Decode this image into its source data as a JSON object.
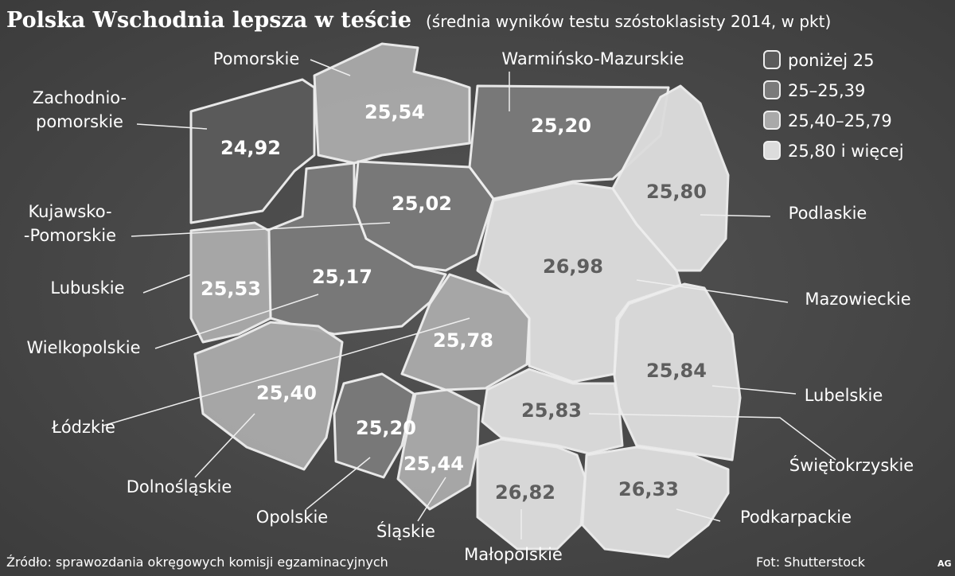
{
  "header": {
    "title": "Polska Wschodnia lepsza w teście",
    "subtitle": "(średnia wyników testu szóstoklasisty 2014, w pkt)"
  },
  "legend": [
    {
      "label": "poniżej 25",
      "color": "#5b5b5b",
      "text_color": "#ffffff"
    },
    {
      "label": "25–25,39",
      "min": 25,
      "color": "#7a7a7a",
      "text_color": "#ffffff"
    },
    {
      "label": "25,40–25,79",
      "min": 25.4,
      "color": "#a9a9a9",
      "text_color": "#ffffff"
    },
    {
      "label": "25,80 i więcej",
      "min": 25.8,
      "color": "#dcdcdc",
      "text_color": "#5e5e5e"
    }
  ],
  "regions": [
    {
      "name_lines": [
        "Pomorskie"
      ],
      "value": 25.54,
      "value_label": "25,54"
    },
    {
      "name_lines": [
        "Zachodnio-",
        "pomorskie"
      ],
      "value": 24.92,
      "value_label": "24,92"
    },
    {
      "name_lines": [
        "Warmińsko-Mazurskie"
      ],
      "value": 25.2,
      "value_label": "25,20"
    },
    {
      "name_lines": [
        "Kujawsko-",
        "-Pomorskie"
      ],
      "value": 25.02,
      "value_label": "25,02"
    },
    {
      "name_lines": [
        "Wielkopolskie"
      ],
      "value": 25.17,
      "value_label": "25,17"
    },
    {
      "name_lines": [
        "Lubuskie"
      ],
      "value": 25.53,
      "value_label": "25,53"
    },
    {
      "name_lines": [
        "Łódzkie"
      ],
      "value": 25.78,
      "value_label": "25,78"
    },
    {
      "name_lines": [
        "Mazowieckie"
      ],
      "value": 26.98,
      "value_label": "26,98"
    },
    {
      "name_lines": [
        "Podlaskie"
      ],
      "value": 25.8,
      "value_label": "25,80"
    },
    {
      "name_lines": [
        "Lubelskie"
      ],
      "value": 25.84,
      "value_label": "25,84"
    },
    {
      "name_lines": [
        "Dolnośląskie"
      ],
      "value": 25.4,
      "value_label": "25,40"
    },
    {
      "name_lines": [
        "Opolskie"
      ],
      "value": 25.2,
      "value_label": "25,20"
    },
    {
      "name_lines": [
        "Śląskie"
      ],
      "value": 25.44,
      "value_label": "25,44"
    },
    {
      "name_lines": [
        "Świętokrzyskie"
      ],
      "value": 25.83,
      "value_label": "25,83"
    },
    {
      "name_lines": [
        "Małopolskie"
      ],
      "value": 26.82,
      "value_label": "26,82"
    },
    {
      "name_lines": [
        "Podkarpackie"
      ],
      "value": 26.33,
      "value_label": "26,33"
    }
  ],
  "footer": {
    "source": "Źródło: sprawozdania okręgowych komisji egzaminacyjnych",
    "photo": "Fot: Shutterstock",
    "author": "AG"
  }
}
